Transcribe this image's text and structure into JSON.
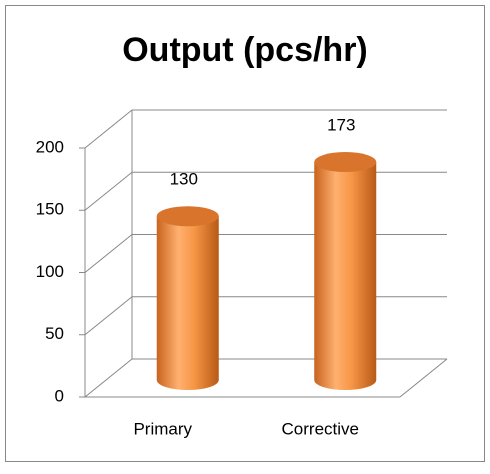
{
  "chart_data": {
    "type": "bar",
    "title": "Output (pcs/hr)",
    "categories": [
      "Primary",
      "Corrective"
    ],
    "values": [
      130,
      173
    ],
    "color": "#f79646",
    "ylim": [
      0,
      200
    ],
    "yticks": [
      0,
      50,
      100,
      150,
      200
    ],
    "grid": true
  }
}
